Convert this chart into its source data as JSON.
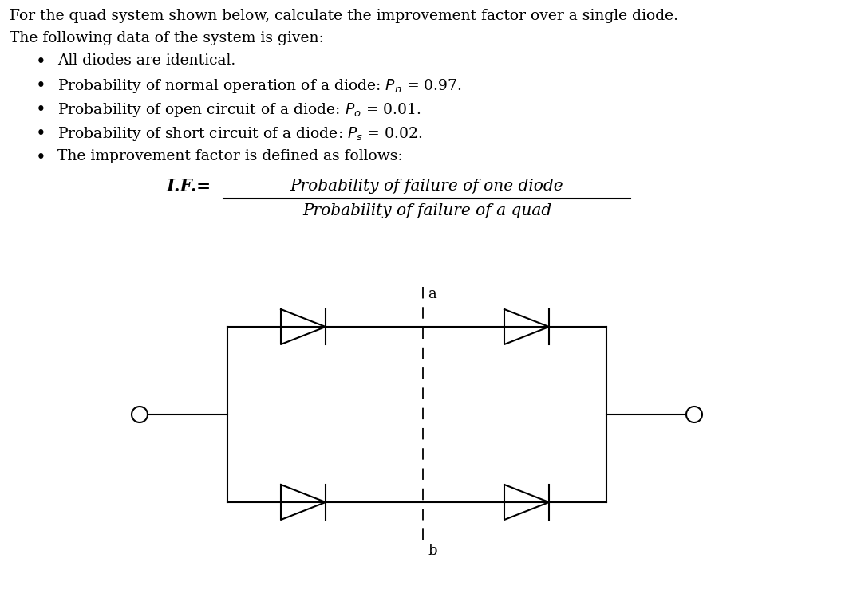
{
  "title_line1": "For the quad system shown below, calculate the improvement factor over a single diode.",
  "title_line2": "The following data of the system is given:",
  "bullets": [
    "All diodes are identical.",
    "Probability of normal operation of a diode: $P_n$ = 0.97.",
    "Probability of open circuit of a diode: $P_o$ = 0.01.",
    "Probability of short circuit of a diode: $P_s$ = 0.02.",
    "The improvement factor is defined as follows:"
  ],
  "if_label": "I.F.=",
  "if_numerator": "Probability of failure of one diode",
  "if_denominator": "Probability of failure of a quad",
  "text_color": "#000000",
  "bg_color": "#ffffff",
  "font_size_body": 13.5,
  "font_size_formula": 14.5,
  "font_size_circuit_label": 13
}
